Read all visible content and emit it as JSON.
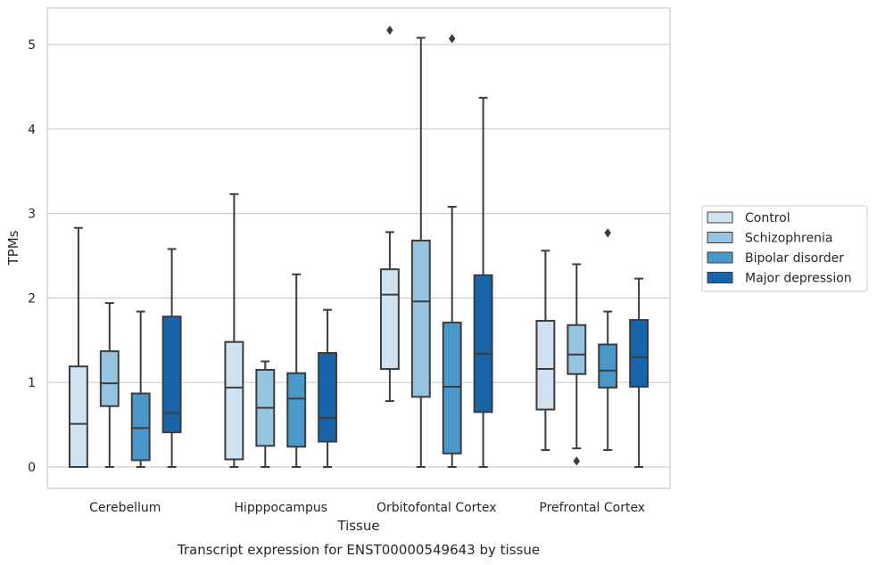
{
  "caption": "Transcript expression for ENST00000549643 by tissue",
  "chart_data": {
    "type": "box",
    "xlabel": "Tissue",
    "ylabel": "TPMs",
    "ylim": [
      -0.25,
      5.45
    ],
    "yticks": [
      0,
      1,
      2,
      3,
      4,
      5
    ],
    "grid": "horizontal",
    "legend_position": "right",
    "categories": [
      "Cerebellum",
      "Hipppocampus",
      "Orbitofontal Cortex",
      "Prefrontal Cortex"
    ],
    "series": [
      {
        "name": "Control",
        "color": "#d0e1f2",
        "boxes": [
          {
            "min": 0.0,
            "q1": 0.0,
            "median": 0.51,
            "q3": 1.19,
            "max": 2.83,
            "outliers": []
          },
          {
            "min": 0.0,
            "q1": 0.09,
            "median": 0.94,
            "q3": 1.48,
            "max": 3.23,
            "outliers": []
          },
          {
            "min": 0.78,
            "q1": 1.16,
            "median": 2.04,
            "q3": 2.34,
            "max": 2.78,
            "outliers": [
              5.17
            ]
          },
          {
            "min": 0.2,
            "q1": 0.68,
            "median": 1.16,
            "q3": 1.73,
            "max": 2.56,
            "outliers": []
          }
        ]
      },
      {
        "name": "Schizophrenia",
        "color": "#94c4df",
        "boxes": [
          {
            "min": 0.0,
            "q1": 0.72,
            "median": 0.99,
            "q3": 1.37,
            "max": 1.94,
            "outliers": []
          },
          {
            "min": 0.0,
            "q1": 0.25,
            "median": 0.7,
            "q3": 1.15,
            "max": 1.25,
            "outliers": []
          },
          {
            "min": 0.0,
            "q1": 0.83,
            "median": 1.96,
            "q3": 2.68,
            "max": 5.08,
            "outliers": []
          },
          {
            "min": 0.22,
            "q1": 1.1,
            "median": 1.33,
            "q3": 1.68,
            "max": 2.4,
            "outliers": [
              0.07
            ]
          }
        ]
      },
      {
        "name": "Bipolar disorder",
        "color": "#4a98c9",
        "boxes": [
          {
            "min": 0.0,
            "q1": 0.08,
            "median": 0.46,
            "q3": 0.87,
            "max": 1.84,
            "outliers": []
          },
          {
            "min": 0.0,
            "q1": 0.24,
            "median": 0.81,
            "q3": 1.11,
            "max": 2.28,
            "outliers": []
          },
          {
            "min": 0.0,
            "q1": 0.16,
            "median": 0.95,
            "q3": 1.71,
            "max": 3.08,
            "outliers": [
              5.07
            ]
          },
          {
            "min": 0.2,
            "q1": 0.94,
            "median": 1.14,
            "q3": 1.45,
            "max": 1.84,
            "outliers": [
              2.77
            ]
          }
        ]
      },
      {
        "name": "Major depression",
        "color": "#1764ab",
        "boxes": [
          {
            "min": 0.0,
            "q1": 0.41,
            "median": 0.64,
            "q3": 1.78,
            "max": 2.58,
            "outliers": []
          },
          {
            "min": 0.0,
            "q1": 0.3,
            "median": 0.58,
            "q3": 1.35,
            "max": 1.86,
            "outliers": []
          },
          {
            "min": 0.0,
            "q1": 0.65,
            "median": 1.34,
            "q3": 2.27,
            "max": 4.37,
            "outliers": []
          },
          {
            "min": 0.0,
            "q1": 0.95,
            "median": 1.3,
            "q3": 1.74,
            "max": 2.23,
            "outliers": []
          }
        ]
      }
    ]
  }
}
